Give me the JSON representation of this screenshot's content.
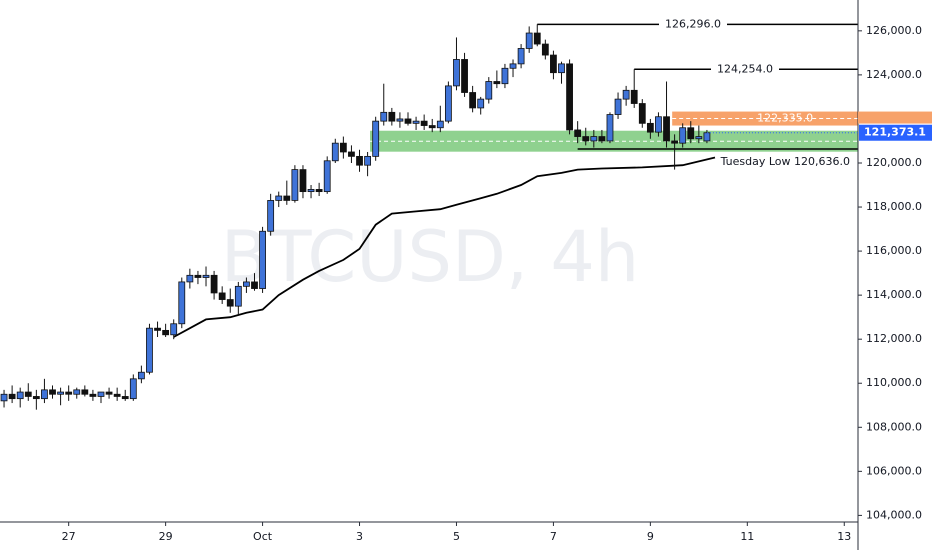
{
  "chart_data": {
    "type": "candlestick",
    "watermark": "BTCUSD, 4h",
    "candles": {
      "open": [
        109200,
        109500,
        109300,
        109600,
        109400,
        109300,
        109700,
        109500,
        109600,
        109500,
        109700,
        109500,
        109400,
        109600,
        109500,
        109400,
        109300,
        110200,
        110500,
        112500,
        112400,
        112200,
        112700,
        114600,
        114900,
        114800,
        114900,
        114100,
        113800,
        113500,
        114400,
        114600,
        114300,
        116900,
        118300,
        118500,
        118300,
        119700,
        118700,
        118800,
        118700,
        120100,
        120900,
        120500,
        120300,
        119900,
        120300,
        121900,
        122300,
        121900,
        122000,
        121800,
        121900,
        121700,
        121600,
        121900,
        123500,
        124700,
        123200,
        122500,
        122900,
        123700,
        123600,
        124300,
        124500,
        125200,
        125900,
        125400,
        124900,
        124100,
        124500,
        121500,
        121200,
        121000,
        121200,
        121000,
        122200,
        122900,
        123300,
        122700,
        121800,
        121400,
        122100,
        121000,
        120900,
        121600,
        121100,
        121000
      ],
      "high": [
        109700,
        109900,
        109800,
        110000,
        109700,
        110200,
        109900,
        109800,
        109900,
        109800,
        109900,
        109700,
        109600,
        109800,
        109800,
        109700,
        110400,
        110800,
        112700,
        112800,
        112700,
        112900,
        114800,
        115200,
        115100,
        115300,
        115100,
        114400,
        114300,
        114600,
        114800,
        115000,
        117100,
        118600,
        118700,
        119200,
        119900,
        119900,
        119000,
        119100,
        120300,
        121100,
        121200,
        120800,
        120600,
        120500,
        122100,
        123600,
        122500,
        122300,
        122300,
        122100,
        122200,
        122000,
        122600,
        123700,
        125700,
        125000,
        123500,
        123000,
        123900,
        124200,
        124500,
        124700,
        125400,
        126200,
        126296,
        125600,
        125100,
        124600,
        124700,
        121900,
        121600,
        121500,
        121500,
        122300,
        123200,
        123500,
        124254,
        122900,
        122000,
        122300,
        123700,
        121300,
        121800,
        121900,
        121700,
        121500
      ],
      "low": [
        108900,
        109100,
        108900,
        109200,
        108800,
        109100,
        109300,
        109000,
        109200,
        109300,
        109400,
        109200,
        109100,
        109300,
        109200,
        109200,
        109200,
        110000,
        110400,
        112100,
        112100,
        112000,
        112500,
        114300,
        114500,
        114400,
        113800,
        113600,
        113200,
        113100,
        114100,
        114200,
        114100,
        116700,
        118000,
        118100,
        118200,
        118400,
        118400,
        118500,
        118600,
        120000,
        120200,
        120000,
        119600,
        119400,
        120100,
        121700,
        121700,
        121600,
        121700,
        121500,
        121500,
        121400,
        121400,
        121800,
        123300,
        123000,
        122300,
        122200,
        122700,
        123400,
        123400,
        123900,
        124300,
        125000,
        125300,
        124700,
        123800,
        123600,
        121300,
        120900,
        120800,
        120700,
        120900,
        120900,
        122000,
        122600,
        122500,
        121600,
        121100,
        121200,
        120700,
        119700,
        120700,
        120900,
        120900,
        120900
      ],
      "close": [
        109500,
        109300,
        109600,
        109400,
        109300,
        109700,
        109500,
        109600,
        109500,
        109700,
        109500,
        109400,
        109600,
        109500,
        109400,
        109300,
        110200,
        110500,
        112500,
        112400,
        112200,
        112700,
        114600,
        114900,
        114800,
        114900,
        114100,
        113800,
        113500,
        114400,
        114600,
        114300,
        116900,
        118300,
        118500,
        118300,
        119700,
        118700,
        118800,
        118700,
        120100,
        120900,
        120500,
        120300,
        119900,
        120300,
        121900,
        122300,
        121900,
        122000,
        121800,
        121900,
        121700,
        121600,
        121900,
        123500,
        124700,
        123200,
        122500,
        122900,
        123700,
        123600,
        124300,
        124500,
        125200,
        125900,
        125400,
        124900,
        124100,
        124500,
        121500,
        121200,
        121000,
        121200,
        121000,
        122200,
        122900,
        123300,
        122700,
        121800,
        121400,
        122100,
        121000,
        120900,
        121600,
        121100,
        121200,
        121373.1
      ]
    },
    "ma": {
      "color": "#000000",
      "x": [
        21,
        23,
        25,
        28,
        30,
        32,
        34,
        37,
        39,
        42,
        44,
        46,
        48,
        51,
        54,
        56,
        59,
        61,
        64,
        66,
        69,
        71,
        74,
        79,
        84,
        88
      ],
      "values": [
        112100,
        112500,
        112900,
        113000,
        113200,
        113350,
        114000,
        114700,
        115100,
        115600,
        116100,
        117200,
        117700,
        117800,
        117900,
        118100,
        118400,
        118600,
        119000,
        119400,
        119550,
        119700,
        119750,
        119800,
        119900,
        120250
      ]
    },
    "levels": [
      {
        "value": 126296,
        "label": "126,296.0",
        "x_start": 66
      },
      {
        "value": 124254,
        "label": "124,254.0",
        "x_start": 78
      },
      {
        "value": 120636,
        "label": "Tuesday Low 120,636.0",
        "x_start": 71
      }
    ],
    "zones": [
      {
        "top": 122335,
        "bottom": 121700,
        "label": "122,335.0",
        "color": "#f7a26a",
        "x_start": 82.7
      },
      {
        "top": 121465,
        "bottom": 120513,
        "color": "#8fd18f",
        "x_start": 45.3
      }
    ],
    "last_price": {
      "value": 121373.1,
      "label": "121,373.1",
      "color": "#2962ff"
    },
    "up_color": "#3f73d8",
    "down_color": "#111111",
    "xlim": [
      -0.5,
      105.7
    ],
    "xticks": [
      {
        "value": 8,
        "label": "27"
      },
      {
        "value": 20,
        "label": "29"
      },
      {
        "value": 32,
        "label": "Oct"
      },
      {
        "value": 44,
        "label": "3"
      },
      {
        "value": 56,
        "label": "5"
      },
      {
        "value": 68,
        "label": "7"
      },
      {
        "value": 80,
        "label": "9"
      },
      {
        "value": 92,
        "label": "11"
      },
      {
        "value": 104,
        "label": "13"
      }
    ],
    "ylim": [
      103700,
      127400
    ],
    "yticks": [
      {
        "value": 104000,
        "label": "104,000.0"
      },
      {
        "value": 106000,
        "label": "106,000.0"
      },
      {
        "value": 108000,
        "label": "108,000.0"
      },
      {
        "value": 110000,
        "label": "110,000.0"
      },
      {
        "value": 112000,
        "label": "112,000.0"
      },
      {
        "value": 114000,
        "label": "114,000.0"
      },
      {
        "value": 116000,
        "label": "116,000.0"
      },
      {
        "value": 118000,
        "label": "118,000.0"
      },
      {
        "value": 120000,
        "label": "120,000.0"
      },
      {
        "value": 122000,
        "label": "122,000.0"
      },
      {
        "value": 124000,
        "label": "124,000.0"
      },
      {
        "value": 126000,
        "label": "126,000.0"
      }
    ],
    "grid": false
  }
}
